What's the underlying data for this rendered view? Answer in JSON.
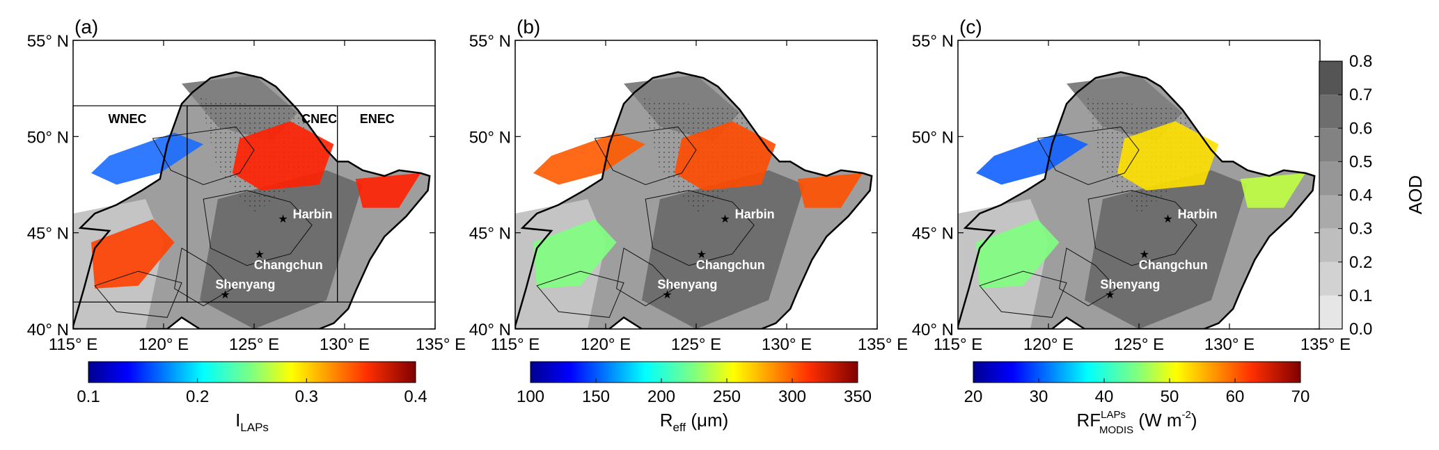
{
  "figure": {
    "lat_axis": {
      "ticks": [
        "40° N",
        "45° N",
        "50° N",
        "55° N"
      ]
    },
    "lon_axis": {
      "ticks": [
        "115° E",
        "120° E",
        "125° E",
        "130° E",
        "135° E"
      ]
    },
    "cities": [
      "Harbin",
      "Changchun",
      "Shenyang"
    ],
    "regions": [
      "WNEC",
      "CNEC",
      "ENEC"
    ],
    "aod_colorbar": {
      "label": "AOD",
      "ticks": [
        "0.0",
        "0.1",
        "0.2",
        "0.3",
        "0.4",
        "0.5",
        "0.6",
        "0.7",
        "0.8"
      ]
    },
    "panels": [
      {
        "letter": "(a)",
        "colorbar": {
          "label_main": "I",
          "label_sub": "LAPs",
          "ticks": [
            "0.1",
            "0.2",
            "0.3",
            "0.4"
          ]
        }
      },
      {
        "letter": "(b)",
        "colorbar": {
          "label_main": "R",
          "label_sub": "eff",
          "label_tail": " (μm)",
          "ticks": [
            "100",
            "150",
            "200",
            "250",
            "300",
            "350"
          ]
        }
      },
      {
        "letter": "(c)",
        "colorbar": {
          "label_main": "RF",
          "label_sup": "LAPs",
          "label_sub": "MODIS",
          "label_tail": " (W m",
          "label_tail_sup": "-2",
          "label_tail_end": ")",
          "ticks": [
            "20",
            "30",
            "40",
            "50",
            "60",
            "70"
          ]
        }
      }
    ],
    "colors": {
      "jet": [
        "#00008f",
        "#0000ff",
        "#0080ff",
        "#00ffff",
        "#80ff80",
        "#ffff00",
        "#ff8000",
        "#ff0000",
        "#800000"
      ],
      "aod_gray": [
        "#e6e6e6",
        "#d2d2d2",
        "#bebebe",
        "#aaaaaa",
        "#969696",
        "#828282",
        "#6e6e6e",
        "#555555",
        "#333333"
      ]
    }
  }
}
